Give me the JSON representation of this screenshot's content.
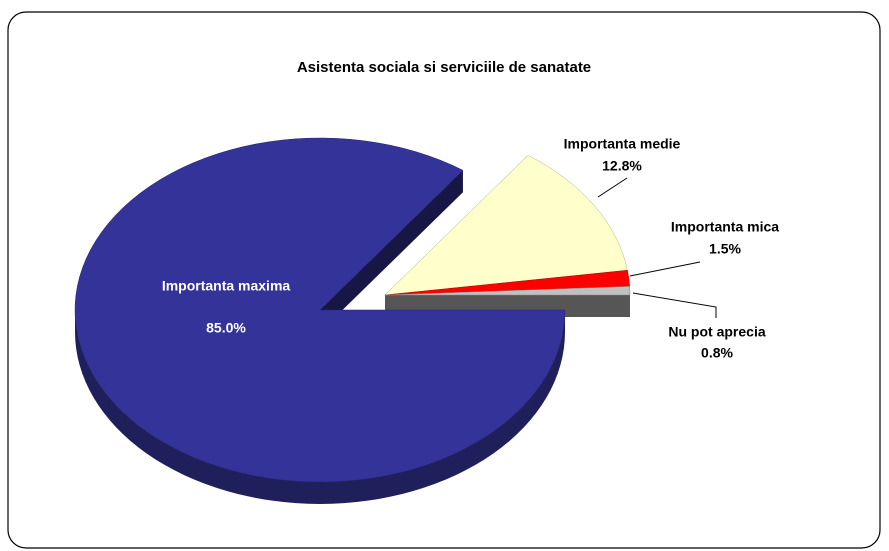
{
  "chart_data": {
    "type": "pie",
    "title": "Asistenta sociala si serviciile de sanatate",
    "categories": [
      "Importanta maxima",
      "Importanta medie",
      "Importanta mica",
      "Nu pot aprecia"
    ],
    "values": [
      85.0,
      12.8,
      1.5,
      0.8
    ],
    "value_labels": [
      "85.0%",
      "12.8%",
      "1.5%",
      "0.8%"
    ],
    "colors": [
      "#333399",
      "#ffffcc",
      "#ff0000",
      "#c0c0c0"
    ]
  }
}
